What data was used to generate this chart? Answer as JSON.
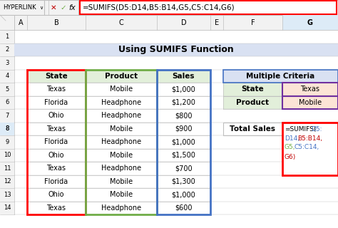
{
  "title": "Using SUMIFS Function",
  "formula_bar_text": "=SUMIFS(D5:D14,B5:B14,G5,C5:C14,G6)",
  "formula_bar_label": "HYPERLINK",
  "main_table_headers": [
    "State",
    "Product",
    "Sales"
  ],
  "main_table_data": [
    [
      "Texas",
      "Mobile",
      "$1,000"
    ],
    [
      "Florida",
      "Headphone",
      "$1,200"
    ],
    [
      "Ohio",
      "Headphone",
      "$800"
    ],
    [
      "Texas",
      "Mobile",
      "$900"
    ],
    [
      "Florida",
      "Headphone",
      "$1,000"
    ],
    [
      "Ohio",
      "Mobile",
      "$1,500"
    ],
    [
      "Texas",
      "Headphone",
      "$700"
    ],
    [
      "Florida",
      "Mobile",
      "$1,300"
    ],
    [
      "Ohio",
      "Mobile",
      "$1,000"
    ],
    [
      "Texas",
      "Headphone",
      "$600"
    ]
  ],
  "criteria_header": "Multiple Criteria",
  "criteria_rows": [
    [
      "State",
      "Texas"
    ],
    [
      "Product",
      "Mobile"
    ]
  ],
  "total_label": "Total Sales",
  "bg_color": "#FFFFFF",
  "title_bg": "#D9E1F2",
  "header_bg": "#E2EFDA",
  "criteria_header_bg": "#D9E1F2",
  "criteria_label_bg": "#E2EFDA",
  "criteria_value_bg": "#FCE4D6",
  "grid_color": "#BFBFBF",
  "red_border": "#FF0000",
  "green_border": "#70AD47",
  "blue_border": "#4472C4",
  "purple_border": "#7030A0",
  "formula_blue": "#4472C4",
  "formula_green": "#70AD47",
  "formula_pink": "#C00000",
  "col_header_bg": "#F2F2F2",
  "col_header_selected": "#DDEBF7",
  "formula_lines": [
    [
      [
        "=SUMIFS(",
        "black"
      ],
      [
        "D5:",
        "#4472C4"
      ]
    ],
    [
      [
        "D14,",
        "#4472C4"
      ],
      [
        "B5:B14,",
        "#C00000"
      ]
    ],
    [
      [
        "G5,",
        "#70AD47"
      ],
      [
        "C5:C14,",
        "#4472C4"
      ]
    ],
    [
      [
        "G6)",
        "#C00000"
      ]
    ]
  ]
}
